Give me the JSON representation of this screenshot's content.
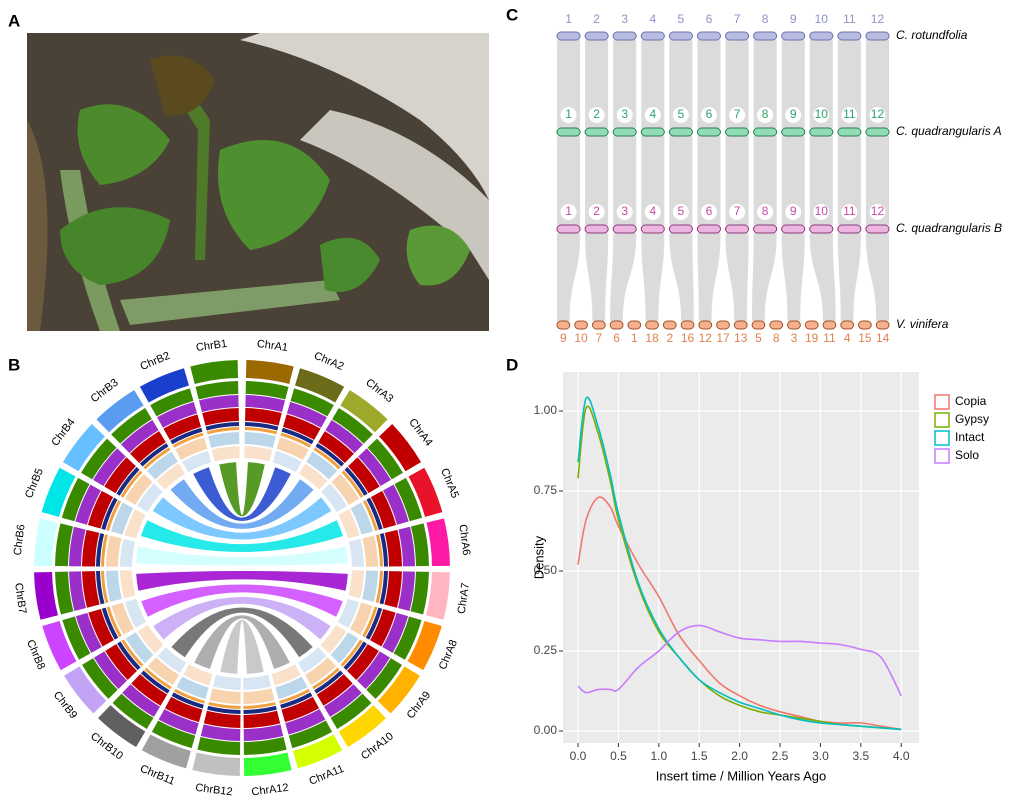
{
  "panel_labels": [
    "A",
    "B",
    "C",
    "D"
  ],
  "circos": {
    "chromosomes_a": [
      "ChrA1",
      "ChrA2",
      "ChrA3",
      "ChrA4",
      "ChrA5",
      "ChrA6",
      "ChrA7",
      "ChrA8",
      "ChrA9",
      "ChrA10",
      "ChrA11",
      "ChrA12"
    ],
    "chromosomes_b": [
      "ChrB1",
      "ChrB2",
      "ChrB3",
      "ChrB4",
      "ChrB5",
      "ChrB6",
      "ChrB7",
      "ChrB8",
      "ChrB9",
      "ChrB10",
      "ChrB11",
      "ChrB12"
    ]
  },
  "synteny": {
    "genomes": [
      {
        "name": "C. rotundfolia",
        "chromosomes": [
          "1",
          "2",
          "3",
          "4",
          "5",
          "6",
          "7",
          "8",
          "9",
          "10",
          "11",
          "12"
        ]
      },
      {
        "name": "C. quadrangularis A",
        "chromosomes": [
          "1",
          "2",
          "3",
          "4",
          "5",
          "6",
          "7",
          "8",
          "9",
          "10",
          "11",
          "12"
        ]
      },
      {
        "name": "C. quadrangularis B",
        "chromosomes": [
          "1",
          "2",
          "3",
          "4",
          "5",
          "6",
          "7",
          "8",
          "9",
          "10",
          "11",
          "12"
        ]
      },
      {
        "name": "V. vinifera",
        "chromosomes": [
          "9",
          "10",
          "7",
          "6",
          "1",
          "18",
          "2",
          "16",
          "12",
          "17",
          "13",
          "5",
          "8",
          "3",
          "19",
          "11",
          "4",
          "15",
          "14"
        ]
      }
    ]
  },
  "chart_data": {
    "type": "line",
    "xlabel": "Insert time / Million Years Ago",
    "ylabel": "Density",
    "x": [
      0,
      0.1,
      0.25,
      0.4,
      0.5,
      0.75,
      1.0,
      1.25,
      1.5,
      1.75,
      2.0,
      2.25,
      2.5,
      2.75,
      3.0,
      3.25,
      3.5,
      3.75,
      4.0
    ],
    "series": [
      {
        "name": "Copia",
        "color": "#f0776c",
        "values": [
          0.52,
          0.66,
          0.73,
          0.7,
          0.64,
          0.52,
          0.42,
          0.3,
          0.22,
          0.15,
          0.11,
          0.08,
          0.06,
          0.045,
          0.03,
          0.025,
          0.025,
          0.015,
          0.005
        ]
      },
      {
        "name": "Gypsy",
        "color": "#7cae00",
        "values": [
          0.79,
          1.01,
          0.93,
          0.78,
          0.66,
          0.45,
          0.31,
          0.23,
          0.16,
          0.11,
          0.08,
          0.06,
          0.05,
          0.04,
          0.03,
          0.02,
          0.015,
          0.01,
          0.005
        ]
      },
      {
        "name": "Intact",
        "color": "#00bfc4",
        "values": [
          0.84,
          1.04,
          0.95,
          0.8,
          0.68,
          0.46,
          0.32,
          0.23,
          0.16,
          0.12,
          0.09,
          0.07,
          0.05,
          0.035,
          0.025,
          0.02,
          0.015,
          0.01,
          0.005
        ]
      },
      {
        "name": "Solo",
        "color": "#c77cff",
        "values": [
          0.14,
          0.12,
          0.13,
          0.13,
          0.13,
          0.2,
          0.25,
          0.31,
          0.33,
          0.31,
          0.29,
          0.285,
          0.28,
          0.28,
          0.275,
          0.27,
          0.255,
          0.23,
          0.11
        ]
      }
    ],
    "xlim": [
      -0.186,
      4.22
    ],
    "ylim": [
      -0.0375,
      1.122
    ],
    "xticks": [
      {
        "value": 0,
        "label": "0.0"
      },
      {
        "value": 0.5,
        "label": "0.5"
      },
      {
        "value": 1,
        "label": "1.0"
      },
      {
        "value": 1.5,
        "label": "1.5"
      },
      {
        "value": 2,
        "label": "2.0"
      },
      {
        "value": 2.5,
        "label": "2.5"
      },
      {
        "value": 3,
        "label": "3.0"
      },
      {
        "value": 3.5,
        "label": "3.5"
      },
      {
        "value": 4,
        "label": "4.0"
      }
    ],
    "yticks": [
      {
        "value": 0,
        "label": "0.00"
      },
      {
        "value": 0.25,
        "label": "0.25"
      },
      {
        "value": 0.5,
        "label": "0.50"
      },
      {
        "value": 0.75,
        "label": "0.75"
      },
      {
        "value": 1,
        "label": "1.00"
      }
    ],
    "grid": true,
    "legend": "right"
  }
}
